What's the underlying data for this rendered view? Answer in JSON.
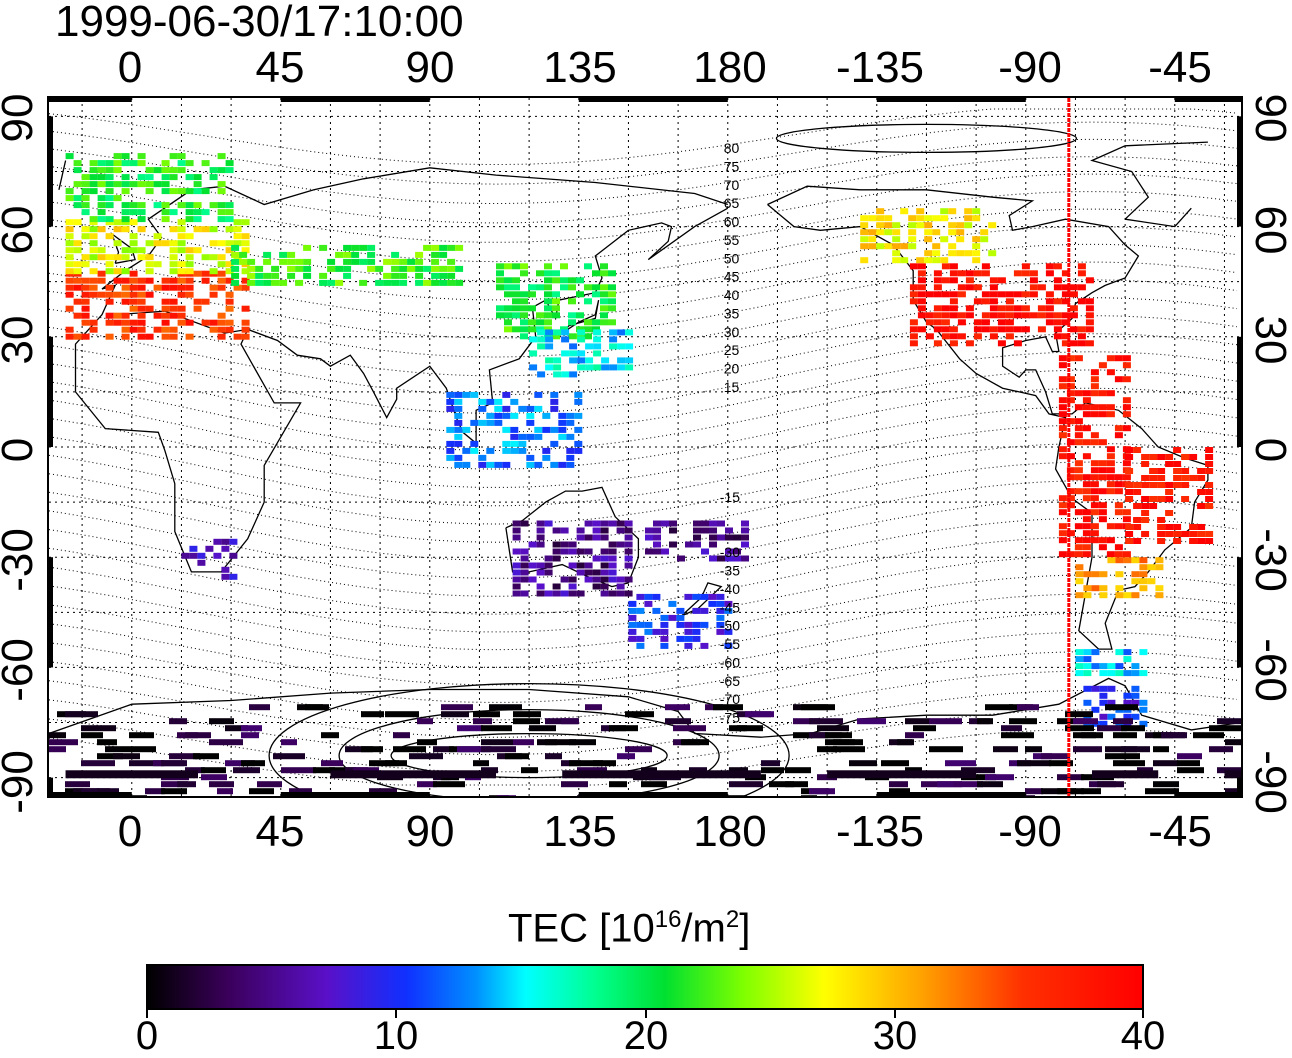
{
  "timestamp": "1999-06-30/17:10:00",
  "axes": {
    "x_ticks_top": [
      "0",
      "45",
      "90",
      "135",
      "180",
      "-135",
      "-90",
      "-45"
    ],
    "x_ticks_bottom": [
      "0",
      "45",
      "90",
      "135",
      "180",
      "-135",
      "-90",
      "-45"
    ],
    "y_ticks_left": [
      "90",
      "60",
      "30",
      "0",
      "-30",
      "-60",
      "-90"
    ],
    "y_ticks_right": [
      "90",
      "60",
      "30",
      "0",
      "-30",
      "-60",
      "-90"
    ],
    "lon_range": [
      -25,
      335
    ],
    "lat_range": [
      -95,
      95
    ],
    "grid": true
  },
  "colorbar": {
    "title_main": "TEC  [10",
    "title_exp": "16",
    "title_mid": "/m",
    "title_exp2": "2",
    "title_end": "]",
    "labels": [
      "0",
      "10",
      "20",
      "30",
      "40"
    ],
    "range": [
      0,
      40
    ]
  },
  "chart_data": {
    "type": "heatmap",
    "title": "1999-06-30/17:10:00",
    "variable": "TEC  [10^16/m^2]",
    "value_range": [
      0,
      40
    ],
    "meridian_marker_lon": -77,
    "contour_labels_north": [
      "80",
      "75",
      "70",
      "65",
      "60",
      "55",
      "50",
      "45",
      "40",
      "35",
      "30",
      "25",
      "20",
      "15"
    ],
    "contour_labels_south": [
      "-15",
      "-30",
      "-35",
      "-40",
      "-45",
      "-50",
      "-55",
      "-60",
      "-65",
      "-70",
      "-75"
    ],
    "regions": [
      {
        "lon": [
          -20,
          35
        ],
        "lat": [
          30,
          48
        ],
        "value": 36
      },
      {
        "lon": [
          -20,
          35
        ],
        "lat": [
          48,
          62
        ],
        "value": 27
      },
      {
        "lon": [
          -20,
          30
        ],
        "lat": [
          62,
          80
        ],
        "value": 21
      },
      {
        "lon": [
          30,
          100
        ],
        "lat": [
          45,
          55
        ],
        "value": 22
      },
      {
        "lon": [
          110,
          145
        ],
        "lat": [
          30,
          50
        ],
        "value": 21
      },
      {
        "lon": [
          120,
          150
        ],
        "lat": [
          20,
          32
        ],
        "value": 15
      },
      {
        "lon": [
          -125,
          -70
        ],
        "lat": [
          28,
          50
        ],
        "value": 39
      },
      {
        "lon": [
          -140,
          -100
        ],
        "lat": [
          50,
          65
        ],
        "value": 28
      },
      {
        "lon": [
          -80,
          -60
        ],
        "lat": [
          -30,
          25
        ],
        "value": 38
      },
      {
        "lon": [
          -60,
          -35
        ],
        "lat": [
          -25,
          0
        ],
        "value": 38
      },
      {
        "lon": [
          -75,
          -50
        ],
        "lat": [
          -40,
          -30
        ],
        "value": 31
      },
      {
        "lon": [
          -75,
          -55
        ],
        "lat": [
          -62,
          -55
        ],
        "value": 14
      },
      {
        "lon": [
          -75,
          -55
        ],
        "lat": [
          -75,
          -65
        ],
        "value": 10
      },
      {
        "lon": [
          150,
          180
        ],
        "lat": [
          -55,
          -40
        ],
        "value": 10
      },
      {
        "lon": [
          155,
          185
        ],
        "lat": [
          -30,
          -20
        ],
        "value": 5
      },
      {
        "lon": [
          115,
          150
        ],
        "lat": [
          -40,
          -20
        ],
        "value": 5
      },
      {
        "lon": [
          15,
          30
        ],
        "lat": [
          -35,
          -25
        ],
        "value": 7
      },
      {
        "lon": [
          -25,
          335
        ],
        "lat": [
          -95,
          -70
        ],
        "value": 1
      },
      {
        "lon": [
          95,
          135
        ],
        "lat": [
          -5,
          15
        ],
        "value": 12
      }
    ]
  }
}
